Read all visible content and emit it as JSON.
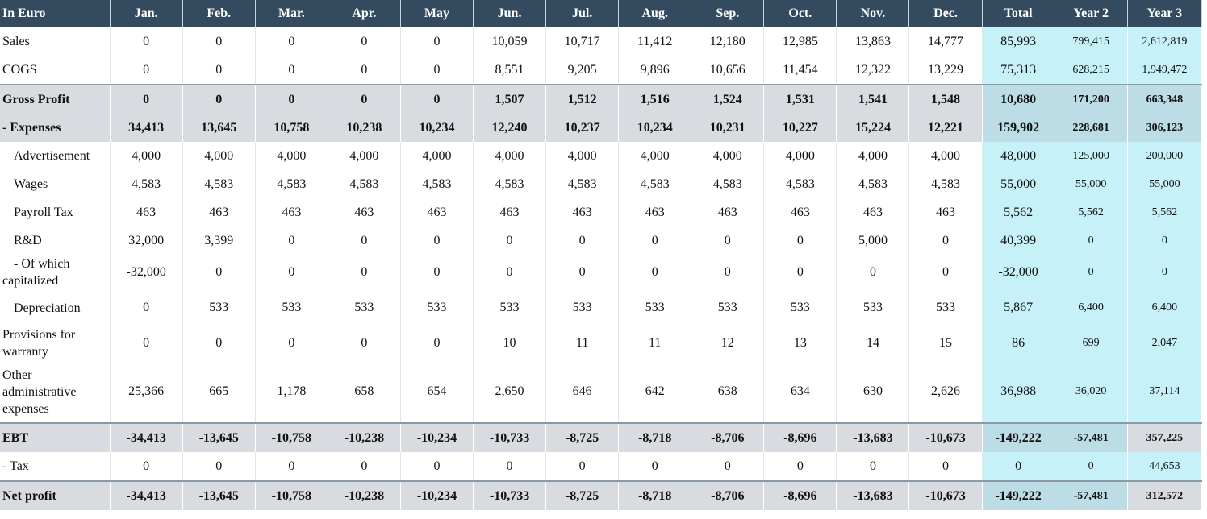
{
  "header": {
    "label": "In Euro",
    "columns": [
      "Jan.",
      "Feb.",
      "Mar.",
      "Apr.",
      "May",
      "Jun.",
      "Jul.",
      "Aug.",
      "Sep.",
      "Oct.",
      "Nov.",
      "Dec.",
      "Total",
      "Year 2",
      "Year 3"
    ]
  },
  "rows": [
    {
      "label": "Sales",
      "values": [
        "0",
        "0",
        "0",
        "0",
        "0",
        "10,059",
        "10,717",
        "11,412",
        "12,180",
        "12,985",
        "13,863",
        "14,777",
        "85,993",
        "799,415",
        "2,612,819"
      ]
    },
    {
      "label": "COGS",
      "values": [
        "0",
        "0",
        "0",
        "0",
        "0",
        "8,551",
        "9,205",
        "9,896",
        "10,656",
        "11,454",
        "12,322",
        "13,229",
        "75,313",
        "628,215",
        "1,949,472"
      ]
    },
    {
      "label": "Gross Profit",
      "values": [
        "0",
        "0",
        "0",
        "0",
        "0",
        "1,507",
        "1,512",
        "1,516",
        "1,524",
        "1,531",
        "1,541",
        "1,548",
        "10,680",
        "171,200",
        "663,348"
      ]
    },
    {
      "label": "- Expenses",
      "values": [
        "34,413",
        "13,645",
        "10,758",
        "10,238",
        "10,234",
        "12,240",
        "10,237",
        "10,234",
        "10,231",
        "10,227",
        "15,224",
        "12,221",
        "159,902",
        "228,681",
        "306,123"
      ]
    },
    {
      "label": "Advertisement",
      "values": [
        "4,000",
        "4,000",
        "4,000",
        "4,000",
        "4,000",
        "4,000",
        "4,000",
        "4,000",
        "4,000",
        "4,000",
        "4,000",
        "4,000",
        "48,000",
        "125,000",
        "200,000"
      ]
    },
    {
      "label": "Wages",
      "values": [
        "4,583",
        "4,583",
        "4,583",
        "4,583",
        "4,583",
        "4,583",
        "4,583",
        "4,583",
        "4,583",
        "4,583",
        "4,583",
        "4,583",
        "55,000",
        "55,000",
        "55,000"
      ]
    },
    {
      "label": "Payroll Tax",
      "values": [
        "463",
        "463",
        "463",
        "463",
        "463",
        "463",
        "463",
        "463",
        "463",
        "463",
        "463",
        "463",
        "5,562",
        "5,562",
        "5,562"
      ]
    },
    {
      "label": "R&D",
      "values": [
        "32,000",
        "3,399",
        "0",
        "0",
        "0",
        "0",
        "0",
        "0",
        "0",
        "0",
        "5,000",
        "0",
        "40,399",
        "0",
        "0"
      ]
    },
    {
      "label": "- Of which capitalized",
      "values": [
        "-32,000",
        "0",
        "0",
        "0",
        "0",
        "0",
        "0",
        "0",
        "0",
        "0",
        "0",
        "0",
        "-32,000",
        "0",
        "0"
      ]
    },
    {
      "label": "Depreciation",
      "values": [
        "0",
        "533",
        "533",
        "533",
        "533",
        "533",
        "533",
        "533",
        "533",
        "533",
        "533",
        "533",
        "5,867",
        "6,400",
        "6,400"
      ]
    },
    {
      "label": "Provisions for warranty",
      "values": [
        "0",
        "0",
        "0",
        "0",
        "0",
        "10",
        "11",
        "11",
        "12",
        "13",
        "14",
        "15",
        "86",
        "699",
        "2,047"
      ]
    },
    {
      "label": "Other administrative expenses",
      "values": [
        "25,366",
        "665",
        "1,178",
        "658",
        "654",
        "2,650",
        "646",
        "642",
        "638",
        "634",
        "630",
        "2,626",
        "36,988",
        "36,020",
        "37,114"
      ]
    },
    {
      "label": "EBT",
      "values": [
        "-34,413",
        "-13,645",
        "-10,758",
        "-10,238",
        "-10,234",
        "-10,733",
        "-8,725",
        "-8,718",
        "-8,706",
        "-8,696",
        "-13,683",
        "-10,673",
        "-149,222",
        "-57,481",
        "357,225"
      ]
    },
    {
      "label": "- Tax",
      "values": [
        "0",
        "0",
        "0",
        "0",
        "0",
        "0",
        "0",
        "0",
        "0",
        "0",
        "0",
        "0",
        "0",
        "0",
        "44,653"
      ]
    },
    {
      "label": "Net profit",
      "values": [
        "-34,413",
        "-13,645",
        "-10,758",
        "-10,238",
        "-10,234",
        "-10,733",
        "-8,725",
        "-8,718",
        "-8,706",
        "-8,696",
        "-13,683",
        "-10,673",
        "-149,222",
        "-57,481",
        "312,572"
      ]
    }
  ]
}
